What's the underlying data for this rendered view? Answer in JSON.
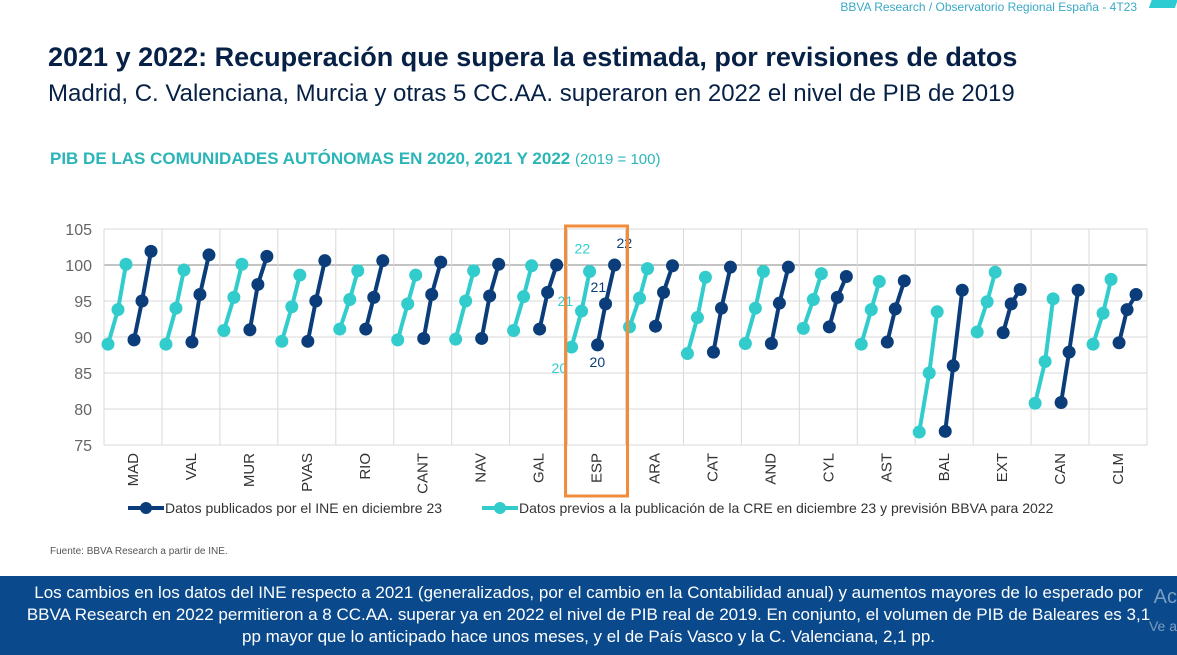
{
  "header": {
    "running_title": "BBVA Research / Observatorio Regional España - 4T23"
  },
  "title": "2021 y 2022: Recuperación que supera la estimada, por revisiones de datos",
  "subtitle": "Madrid, C. Valenciana, Murcia y otras 5 CC.AA. superaron en 2022 el nivel de PIB de 2019",
  "source": "Fuente: BBVA Research a partir de INE.",
  "conclusion": "Los cambios en los datos del INE respecto a 2021 (generalizados, por el cambio en la Contabilidad anual) y aumentos mayores de lo esperado por BBVA Research en 2022 permitieron a 8 CC.AA. superar ya en 2022 el nivel de PIB real de 2019. En conjunto, el volumen de PIB de Baleares es 3,1 pp mayor que lo anticipado hace unos meses, y el de País Vasco y la C. Valenciana, 2,1 pp.",
  "watermark": {
    "line1": "Ac",
    "line2": "Ve a"
  },
  "colors": {
    "ine": "#0b3d7a",
    "previous": "#33cccc",
    "highlight": "#f08c3c",
    "band": "#0a4a8c"
  },
  "chart_data": {
    "type": "line",
    "title": "PIB DE LAS COMUNIDADES AUTÓNOMAS EN 2020, 2021 Y 2022",
    "title_note": "(2019 = 100)",
    "ylim": [
      75,
      105
    ],
    "yticks": [
      "75",
      "80",
      "85",
      "90",
      "95",
      "100",
      "105"
    ],
    "grid": true,
    "legend_position": "bottom",
    "highlight_category": "ESP",
    "point_labels": {
      "ine": [
        "20",
        "21",
        "22"
      ],
      "previous": [
        "20",
        "21",
        "22"
      ]
    },
    "categories": [
      "MAD",
      "VAL",
      "MUR",
      "PVAS",
      "RIO",
      "CANT",
      "NAV",
      "GAL",
      "ESP",
      "ARA",
      "CAT",
      "AND",
      "CYL",
      "AST",
      "BAL",
      "EXT",
      "CAN",
      "CLM"
    ],
    "series": [
      {
        "name": "Datos publicados por el INE en diciembre 23",
        "key": "ine",
        "values": [
          [
            89.6,
            95,
            101.9
          ],
          [
            89.3,
            95.9,
            101.4
          ],
          [
            91,
            97.3,
            101.2
          ],
          [
            89.4,
            95,
            100.6
          ],
          [
            91.1,
            95.5,
            100.6
          ],
          [
            89.8,
            95.9,
            100.4
          ],
          [
            89.8,
            95.7,
            100.1
          ],
          [
            91.1,
            96.2,
            100
          ],
          [
            88.9,
            94.6,
            100
          ],
          [
            91.5,
            96.2,
            99.9
          ],
          [
            87.9,
            94,
            99.7
          ],
          [
            89.1,
            94.7,
            99.7
          ],
          [
            91.4,
            95.5,
            98.4
          ],
          [
            89.3,
            93.9,
            97.8
          ],
          [
            76.9,
            86,
            96.5
          ],
          [
            90.6,
            94.6,
            96.6
          ],
          [
            80.9,
            87.9,
            96.5
          ],
          [
            89.2,
            93.8,
            95.9
          ]
        ]
      },
      {
        "name": "Datos previos a la publicación de la CRE en diciembre 23 y previsión BBVA para 2022",
        "key": "previous",
        "values": [
          [
            89,
            93.8,
            100.1
          ],
          [
            89,
            94,
            99.3
          ],
          [
            90.9,
            95.5,
            100.1
          ],
          [
            89.4,
            94.2,
            98.6
          ],
          [
            91.1,
            95.2,
            99.2
          ],
          [
            89.6,
            94.6,
            98.6
          ],
          [
            89.7,
            95,
            99.2
          ],
          [
            90.9,
            95.6,
            99.9
          ],
          [
            88.6,
            93.6,
            99.1
          ],
          [
            91.4,
            95.4,
            99.5
          ],
          [
            87.7,
            92.7,
            98.3
          ],
          [
            89.1,
            94,
            99.1
          ],
          [
            91.2,
            95.2,
            98.8
          ],
          [
            89,
            93.8,
            97.7
          ],
          [
            76.8,
            85,
            93.5
          ],
          [
            90.7,
            94.9,
            99
          ],
          [
            80.8,
            86.6,
            95.3
          ],
          [
            89,
            93.3,
            98
          ]
        ]
      }
    ]
  }
}
